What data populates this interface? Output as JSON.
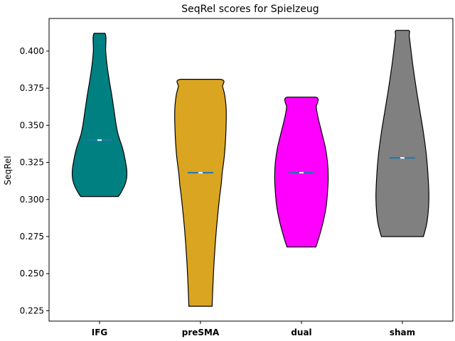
{
  "chart_data": {
    "type": "violin",
    "title": "SeqRel scores for Spielzeug",
    "xlabel": "",
    "ylabel": "SeqRel",
    "ylim": [
      0.218,
      0.422
    ],
    "yticks": [
      0.225,
      0.25,
      0.275,
      0.3,
      0.325,
      0.35,
      0.375,
      0.4
    ],
    "ytick_labels": [
      "0.225",
      "0.250",
      "0.275",
      "0.300",
      "0.325",
      "0.350",
      "0.375",
      "0.400"
    ],
    "grid": false,
    "categories": [
      "IFG",
      "preSMA",
      "dual",
      "sham"
    ],
    "series": [
      {
        "category": "IFG",
        "color": "#008080",
        "min": 0.302,
        "max": 0.412,
        "median": 0.34,
        "profile": [
          [
            0.302,
            0.52
          ],
          [
            0.305,
            0.6
          ],
          [
            0.31,
            0.7
          ],
          [
            0.315,
            0.75
          ],
          [
            0.32,
            0.75
          ],
          [
            0.325,
            0.72
          ],
          [
            0.33,
            0.68
          ],
          [
            0.335,
            0.63
          ],
          [
            0.34,
            0.56
          ],
          [
            0.345,
            0.5
          ],
          [
            0.35,
            0.46
          ],
          [
            0.355,
            0.43
          ],
          [
            0.36,
            0.4
          ],
          [
            0.37,
            0.34
          ],
          [
            0.38,
            0.27
          ],
          [
            0.39,
            0.21
          ],
          [
            0.4,
            0.17
          ],
          [
            0.412,
            0.15
          ]
        ]
      },
      {
        "category": "preSMA",
        "color": "#DAA520",
        "min": 0.228,
        "max": 0.381,
        "median": 0.318,
        "profile": [
          [
            0.228,
            0.32
          ],
          [
            0.24,
            0.34
          ],
          [
            0.26,
            0.38
          ],
          [
            0.28,
            0.44
          ],
          [
            0.3,
            0.52
          ],
          [
            0.31,
            0.57
          ],
          [
            0.318,
            0.6
          ],
          [
            0.33,
            0.66
          ],
          [
            0.345,
            0.7
          ],
          [
            0.36,
            0.71
          ],
          [
            0.37,
            0.67
          ],
          [
            0.376,
            0.61
          ],
          [
            0.381,
            0.55
          ]
        ]
      },
      {
        "category": "dual",
        "color": "#FF00FF",
        "min": 0.268,
        "max": 0.369,
        "median": 0.318,
        "profile": [
          [
            0.268,
            0.4
          ],
          [
            0.275,
            0.49
          ],
          [
            0.285,
            0.6
          ],
          [
            0.295,
            0.68
          ],
          [
            0.305,
            0.72
          ],
          [
            0.315,
            0.74
          ],
          [
            0.325,
            0.72
          ],
          [
            0.335,
            0.66
          ],
          [
            0.345,
            0.56
          ],
          [
            0.355,
            0.46
          ],
          [
            0.362,
            0.41
          ],
          [
            0.369,
            0.4
          ]
        ]
      },
      {
        "category": "sham",
        "color": "#808080",
        "min": 0.275,
        "max": 0.414,
        "median": 0.328,
        "profile": [
          [
            0.275,
            0.58
          ],
          [
            0.285,
            0.68
          ],
          [
            0.3,
            0.73
          ],
          [
            0.315,
            0.71
          ],
          [
            0.33,
            0.66
          ],
          [
            0.345,
            0.58
          ],
          [
            0.36,
            0.48
          ],
          [
            0.375,
            0.38
          ],
          [
            0.39,
            0.29
          ],
          [
            0.4,
            0.24
          ],
          [
            0.41,
            0.19
          ],
          [
            0.414,
            0.17
          ]
        ]
      }
    ]
  }
}
